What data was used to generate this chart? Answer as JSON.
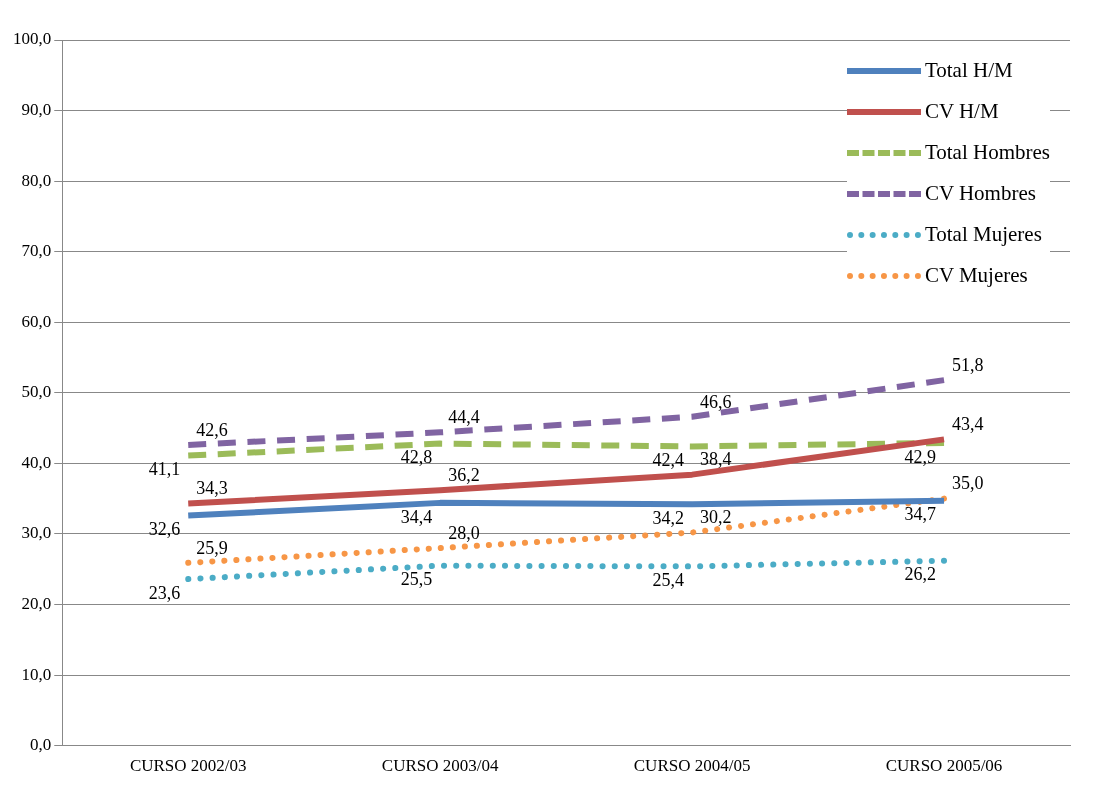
{
  "chart_data": {
    "type": "line",
    "categories": [
      "CURSO 2002/03",
      "CURSO 2003/04",
      "CURSO 2004/05",
      "CURSO 2005/06"
    ],
    "ylim": [
      0,
      100
    ],
    "yticks": [
      {
        "value": 0,
        "label": "0,0"
      },
      {
        "value": 10,
        "label": "10,0"
      },
      {
        "value": 20,
        "label": "20,0"
      },
      {
        "value": 30,
        "label": "30,0"
      },
      {
        "value": 40,
        "label": "40,0"
      },
      {
        "value": 50,
        "label": "50,0"
      },
      {
        "value": 60,
        "label": "60,0"
      },
      {
        "value": 70,
        "label": "70,0"
      },
      {
        "value": 80,
        "label": "80,0"
      },
      {
        "value": 90,
        "label": "90,0"
      },
      {
        "value": 100,
        "label": "100,0"
      }
    ],
    "grid": "y",
    "legend": "top right",
    "marker": "none",
    "series": [
      {
        "name": "Total H/M",
        "color": "#4f81bd",
        "line_style": "solid",
        "values": [
          32.6,
          34.4,
          34.2,
          34.7
        ],
        "value_labels": [
          "32,6",
          "34,4",
          "34,2",
          "34,7"
        ]
      },
      {
        "name": "CV H/M",
        "color": "#c0504d",
        "line_style": "solid",
        "values": [
          34.3,
          36.2,
          38.4,
          43.4
        ],
        "value_labels": [
          "34,3",
          "36,2",
          "38,4",
          "43,4"
        ]
      },
      {
        "name": "Total Hombres",
        "color": "#9bbb59",
        "line_style": "dashed",
        "values": [
          41.1,
          42.8,
          42.4,
          42.9
        ],
        "value_labels": [
          "41,1",
          "42,8",
          "42,4",
          "42,9"
        ]
      },
      {
        "name": "CV Hombres",
        "color": "#8064a2",
        "line_style": "dashed",
        "values": [
          42.6,
          44.4,
          46.6,
          51.8
        ],
        "value_labels": [
          "42,6",
          "44,4",
          "46,6",
          "51,8"
        ]
      },
      {
        "name": "Total Mujeres",
        "color": "#4bacc6",
        "line_style": "dotted",
        "values": [
          23.6,
          25.5,
          25.4,
          26.2
        ],
        "value_labels": [
          "23,6",
          "25,5",
          "25,4",
          "26,2"
        ]
      },
      {
        "name": "CV Mujeres",
        "color": "#f79646",
        "line_style": "dotted",
        "values": [
          25.9,
          28.0,
          30.2,
          35.0
        ],
        "value_labels": [
          "25,9",
          "28,0",
          "30,2",
          "35,0"
        ]
      }
    ]
  }
}
